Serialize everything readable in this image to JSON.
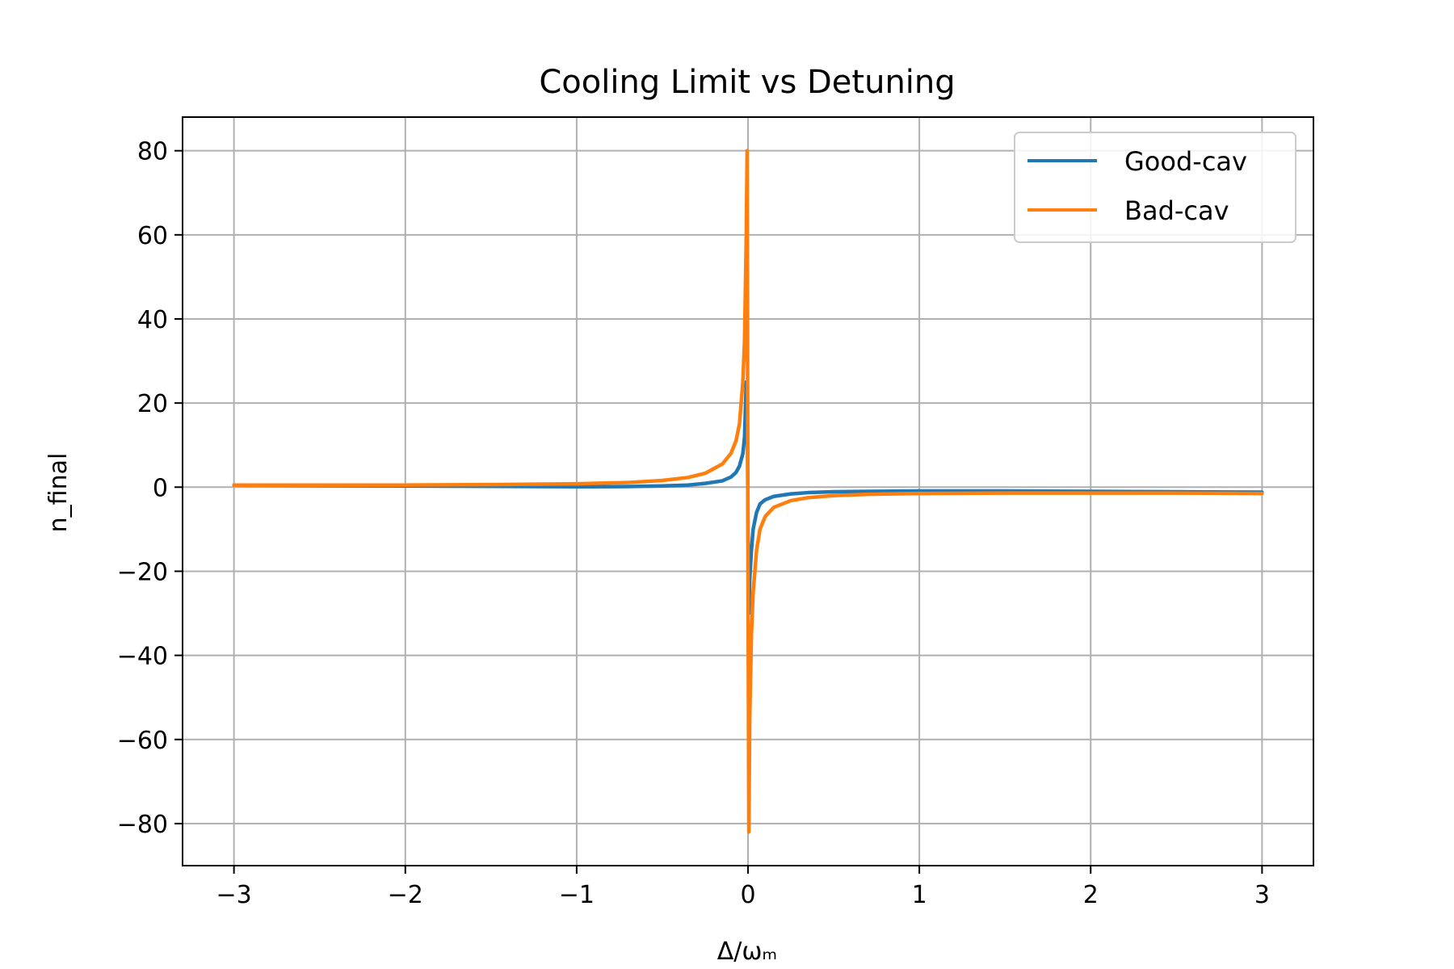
{
  "chart_data": {
    "type": "line",
    "title": "Cooling Limit vs Detuning",
    "xlabel": "Δ/ωₘ",
    "ylabel": "n_final",
    "xlim": [
      -3.3,
      3.3
    ],
    "ylim": [
      -90,
      88
    ],
    "xticks": [
      -3,
      -2,
      -1,
      0,
      1,
      2,
      3
    ],
    "xtick_labels": [
      "−3",
      "−2",
      "−1",
      "0",
      "1",
      "2",
      "3"
    ],
    "yticks": [
      -80,
      -60,
      -40,
      -20,
      0,
      20,
      40,
      60,
      80
    ],
    "ytick_labels": [
      "−80",
      "−60",
      "−40",
      "−20",
      "0",
      "20",
      "40",
      "60",
      "80"
    ],
    "grid": true,
    "legend_position": "upper-right",
    "series": [
      {
        "name": "Good-cav",
        "color": "#1f77b4",
        "x": [
          -3,
          -2.5,
          -2,
          -1.5,
          -1,
          -0.7,
          -0.5,
          -0.35,
          -0.25,
          -0.15,
          -0.1,
          -0.07,
          -0.05,
          -0.03,
          -0.02,
          -0.01,
          -0.005,
          0,
          0.005,
          0.01,
          0.02,
          0.03,
          0.05,
          0.07,
          0.1,
          0.15,
          0.25,
          0.35,
          0.5,
          0.7,
          1,
          1.5,
          2,
          2.5,
          3
        ],
        "y": [
          0.5,
          0.4,
          0.3,
          0.2,
          0.1,
          0.15,
          0.3,
          0.5,
          0.9,
          1.5,
          2.4,
          3.5,
          5,
          8,
          12,
          25,
          25,
          -10,
          -30,
          -22,
          -15,
          -10,
          -6,
          -4,
          -3,
          -2.2,
          -1.6,
          -1.3,
          -1.1,
          -1,
          -0.9,
          -0.9,
          -1,
          -1.1,
          -1.2
        ]
      },
      {
        "name": "Bad-cav",
        "color": "#ff7f0e",
        "x": [
          -3,
          -2.5,
          -2,
          -1.5,
          -1,
          -0.7,
          -0.5,
          -0.35,
          -0.25,
          -0.15,
          -0.1,
          -0.07,
          -0.05,
          -0.03,
          -0.02,
          -0.01,
          -0.005,
          0,
          0.005,
          0.01,
          0.02,
          0.03,
          0.05,
          0.07,
          0.1,
          0.15,
          0.25,
          0.35,
          0.5,
          0.7,
          1,
          1.5,
          2,
          2.5,
          3
        ],
        "y": [
          0.5,
          0.5,
          0.5,
          0.6,
          0.8,
          1.1,
          1.6,
          2.3,
          3.3,
          5.5,
          8,
          11,
          15,
          25,
          35,
          60,
          80,
          -20,
          -82,
          -55,
          -35,
          -25,
          -15,
          -10,
          -7,
          -4.8,
          -3.2,
          -2.5,
          -2,
          -1.7,
          -1.5,
          -1.4,
          -1.4,
          -1.4,
          -1.5
        ]
      }
    ]
  }
}
